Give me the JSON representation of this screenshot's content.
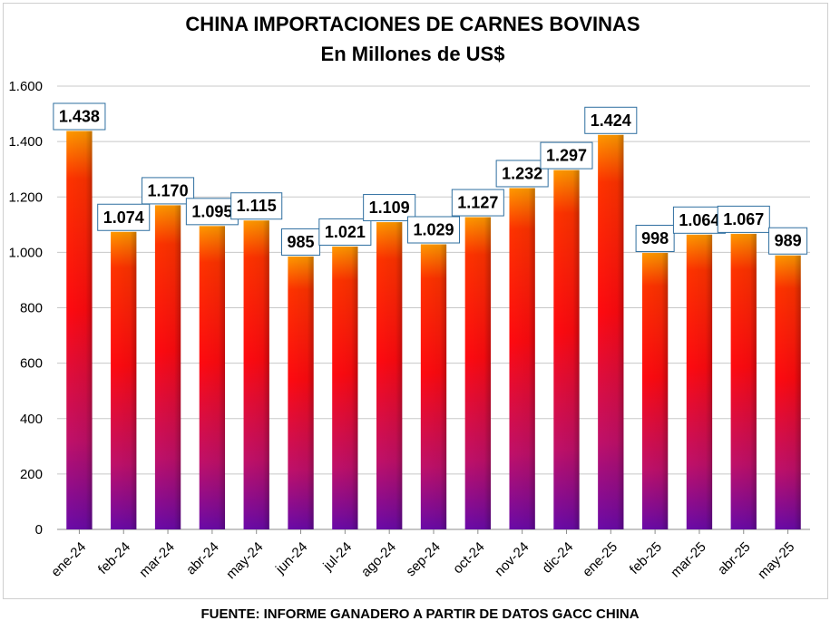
{
  "chart_data": {
    "type": "bar",
    "title": "CHINA IMPORTACIONES DE CARNES BOVINAS",
    "subtitle": "En Millones de US$",
    "categories": [
      "ene-24",
      "feb-24",
      "mar-24",
      "abr-24",
      "may-24",
      "jun-24",
      "jul-24",
      "ago-24",
      "sep-24",
      "oct-24",
      "nov-24",
      "dic-24",
      "ene-25",
      "feb-25",
      "mar-25",
      "abr-25",
      "may-25"
    ],
    "values": [
      1438,
      1074,
      1170,
      1095,
      1115,
      985,
      1021,
      1109,
      1029,
      1127,
      1232,
      1297,
      1424,
      998,
      1064,
      1067,
      989
    ],
    "data_labels": [
      "1.438",
      "1.074",
      "1.170",
      "1.095",
      "1.115",
      "985",
      "1.021",
      "1.109",
      "1.029",
      "1.127",
      "1.232",
      "1.297",
      "1.424",
      "998",
      "1.064",
      "1.067",
      "989"
    ],
    "ylim": [
      0,
      1600
    ],
    "yticks": [
      0,
      200,
      400,
      600,
      800,
      1000,
      1200,
      1400,
      1600
    ],
    "ytick_labels": [
      "0",
      "200",
      "400",
      "600",
      "800",
      "1.000",
      "1.200",
      "1.400",
      "1.600"
    ],
    "xlabel": "",
    "ylabel": "",
    "grid": true,
    "legend": "none",
    "colors": {
      "bar_top": "#ff9900",
      "bar_mid": "#ff1a00",
      "bar_bottom": "#7a0aa0",
      "label_border": "#2f6fa0",
      "grid": "#c8c8c8"
    }
  },
  "source": "FUENTE: INFORME GANADERO A PARTIR DE DATOS GACC CHINA"
}
